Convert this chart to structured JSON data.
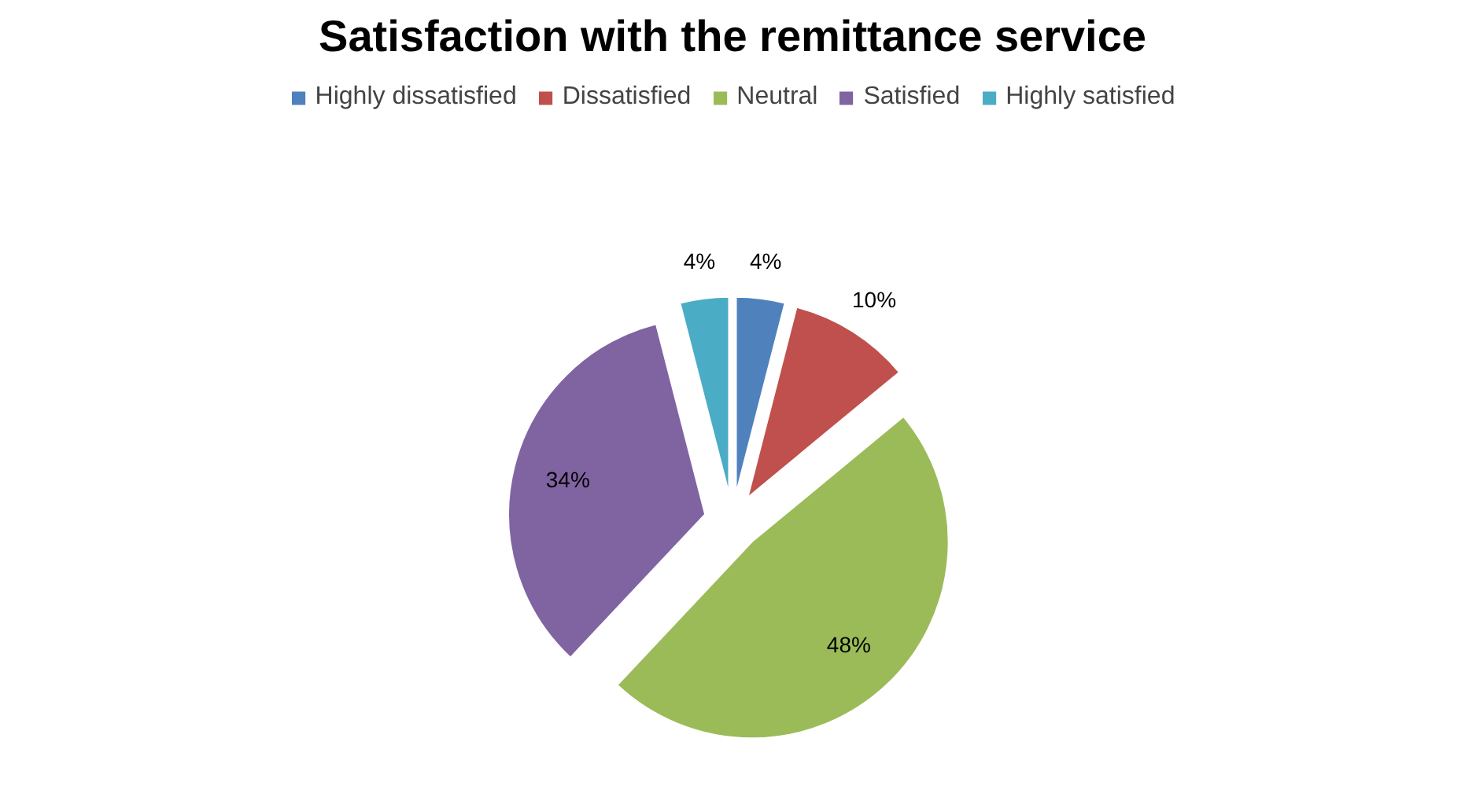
{
  "chart_data": {
    "type": "pie",
    "title": "Satisfaction with the remittance service",
    "categories": [
      "Highly dissatisfied",
      "Dissatisfied",
      "Neutral",
      "Satisfied",
      "Highly satisfied"
    ],
    "values": [
      4,
      10,
      48,
      34,
      4
    ],
    "colors": [
      "#4f81bd",
      "#c0504d",
      "#9bbb59",
      "#8064a2",
      "#4bacc6"
    ],
    "value_labels": [
      "4%",
      "10%",
      "48%",
      "34%",
      "4%"
    ],
    "legend": "top"
  }
}
